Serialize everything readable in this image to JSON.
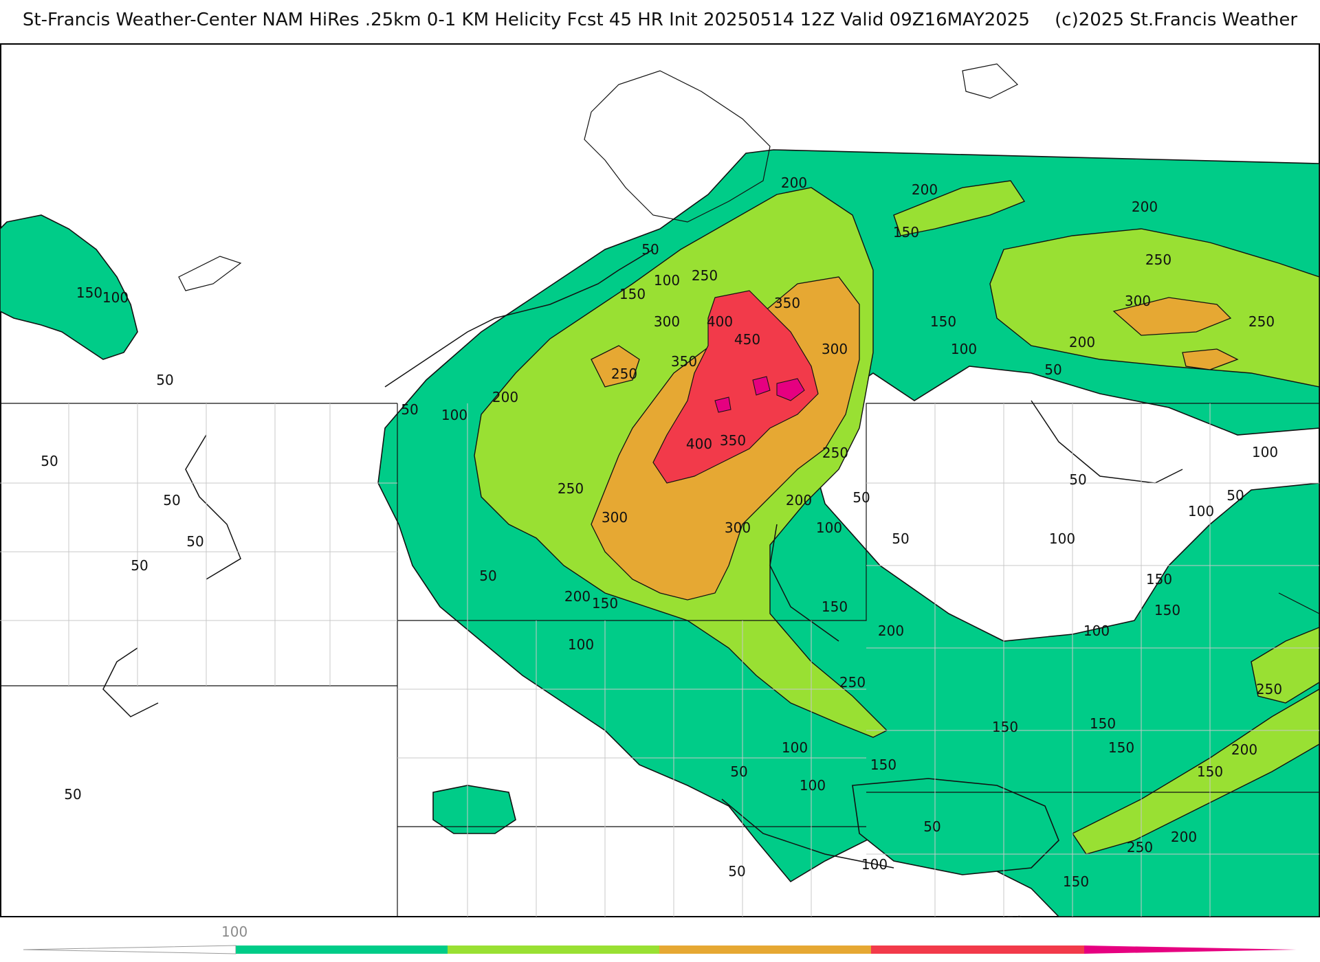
{
  "header": {
    "title_main": "St-Francis Weather-Center NAM HiRes .25km 0-1 KM Helicity Fcst 45 HR Init 20250514 12Z  Valid 09Z16MAY2025",
    "copyright": "(c)2025 St.Francis Weather"
  },
  "map": {
    "field": "0-1 KM Helicity",
    "contour_interval": 50,
    "contour_labels": [
      {
        "text": "50"
      },
      {
        "text": "100"
      },
      {
        "text": "150"
      },
      {
        "text": "200"
      },
      {
        "text": "250"
      },
      {
        "text": "300"
      },
      {
        "text": "350"
      },
      {
        "text": "400"
      },
      {
        "text": "450"
      }
    ]
  },
  "colorbar": {
    "tick_labels": [
      "100"
    ],
    "colors": {
      "lt_100": "#ffffff",
      "b100_200": "#00cc88",
      "b200_300": "#99e033",
      "b300_400": "#e6a833",
      "b400_500": "#f23a4a",
      "gt_500": "#e60080"
    }
  }
}
